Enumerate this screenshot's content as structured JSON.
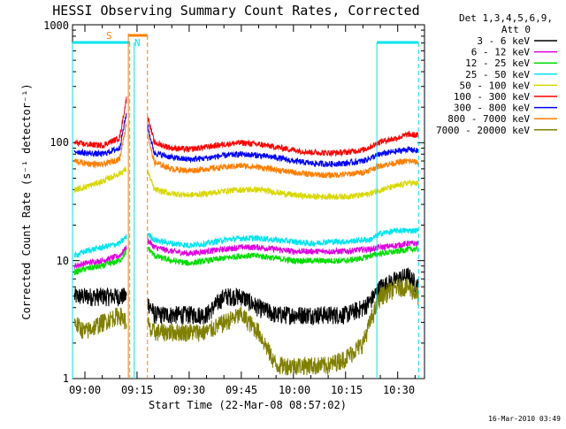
{
  "chart_data": {
    "type": "line",
    "title": "HESSI Observing Summary Count Rates, Corrected",
    "xlabel": "Start Time (22-Mar-08 08:57:02)",
    "ylabel": "Corrected Count Rate (s⁻¹ detector⁻¹)",
    "yscale": "log",
    "ylim": [
      1,
      1000
    ],
    "xlim": [
      "08:57:02",
      "10:36:30"
    ],
    "x_ticks": [
      "09:00",
      "09:15",
      "09:30",
      "09:45",
      "10:00",
      "10:15",
      "10:30"
    ],
    "y_ticks": [
      "1",
      "10",
      "100",
      "1000"
    ],
    "grid": false,
    "legend_position": "right",
    "legend_header": [
      "Det 1,3,4,5,6,9,",
      "Att 0"
    ],
    "x_minutes_after_0900": [
      -3,
      0,
      5,
      10,
      12,
      13,
      14,
      15,
      16,
      18,
      19,
      20,
      25,
      30,
      35,
      40,
      45,
      50,
      55,
      60,
      65,
      70,
      75,
      80,
      82,
      85,
      90,
      93,
      96
    ],
    "series": [
      {
        "name": "3 - 6 keV",
        "color": "#000000",
        "values": [
          5,
          5,
          5,
          5,
          5,
          null,
          null,
          null,
          null,
          4.5,
          4,
          3.5,
          3.5,
          3.5,
          3.5,
          5,
          5,
          4,
          3.5,
          3.5,
          3.5,
          3.5,
          3.5,
          4,
          4.5,
          6,
          7,
          7.5,
          6
        ]
      },
      {
        "name": "6 - 12 keV",
        "color": "#e000e0",
        "values": [
          9,
          9.5,
          10,
          11,
          13,
          null,
          null,
          null,
          null,
          15,
          14,
          13,
          12,
          11.5,
          12,
          12.5,
          13,
          13,
          12.5,
          12,
          12,
          12,
          12,
          12.5,
          12.5,
          13,
          13.5,
          14,
          14
        ]
      },
      {
        "name": "12 - 25 keV",
        "color": "#00dd00",
        "values": [
          8,
          8.5,
          9,
          10,
          12,
          null,
          null,
          null,
          null,
          13,
          12,
          11,
          10,
          9.5,
          10,
          10.5,
          11,
          11,
          10.5,
          10,
          10,
          10,
          10,
          10.5,
          11,
          11.5,
          12,
          12.5,
          12.5
        ]
      },
      {
        "name": "25 - 50 keV",
        "color": "#00e5ee",
        "values": [
          11,
          12,
          13,
          14,
          16,
          null,
          null,
          null,
          null,
          17,
          16,
          15,
          14,
          13.5,
          14,
          15,
          15.5,
          15.5,
          15,
          14.5,
          14,
          14.5,
          14.5,
          15,
          15,
          17,
          18,
          18,
          18
        ]
      },
      {
        "name": "50 - 100 keV",
        "color": "#d8d800",
        "values": [
          40,
          42,
          47,
          55,
          60,
          null,
          null,
          null,
          null,
          58,
          48,
          40,
          37,
          36,
          37,
          39,
          40,
          40,
          38,
          36,
          35,
          35,
          35,
          36,
          37,
          40,
          43,
          46,
          45
        ]
      },
      {
        "name": "100 - 300 keV",
        "color": "#ff0000",
        "values": [
          100,
          97,
          95,
          110,
          240,
          null,
          null,
          null,
          null,
          170,
          130,
          100,
          90,
          88,
          92,
          97,
          100,
          97,
          92,
          87,
          83,
          82,
          83,
          87,
          92,
          102,
          110,
          118,
          115
        ]
      },
      {
        "name": "300 - 800 keV",
        "color": "#0000ff",
        "values": [
          85,
          82,
          80,
          90,
          180,
          null,
          null,
          null,
          null,
          140,
          105,
          82,
          75,
          72,
          74,
          78,
          80,
          78,
          75,
          70,
          67,
          66,
          67,
          70,
          74,
          80,
          85,
          88,
          85
        ]
      },
      {
        "name": "800 - 7000 keV",
        "color": "#ff7f00",
        "values": [
          70,
          67,
          65,
          73,
          150,
          null,
          null,
          null,
          null,
          120,
          88,
          68,
          60,
          58,
          60,
          62,
          64,
          62,
          59,
          56,
          54,
          53,
          54,
          56,
          59,
          64,
          68,
          70,
          68
        ]
      },
      {
        "name": "7000 - 20000 keV",
        "color": "#808000",
        "values": [
          3,
          2.5,
          3,
          3.5,
          3,
          null,
          null,
          null,
          null,
          3,
          2.5,
          2.5,
          2.5,
          2.5,
          2.5,
          3,
          3.5,
          2.5,
          1.3,
          1.3,
          1.3,
          1.3,
          1.5,
          2,
          3,
          5,
          6,
          6,
          5
        ]
      }
    ],
    "annotations": {
      "markers": [
        {
          "label": "S",
          "color": "#ff7f00"
        },
        {
          "label": "N",
          "color": "#00e5ee"
        }
      ],
      "attenuator_bar_color": "#00e5ee",
      "saa_bar_color": "#ff7f00"
    },
    "footer_timestamp": "16-Mar-2010 03:49"
  }
}
